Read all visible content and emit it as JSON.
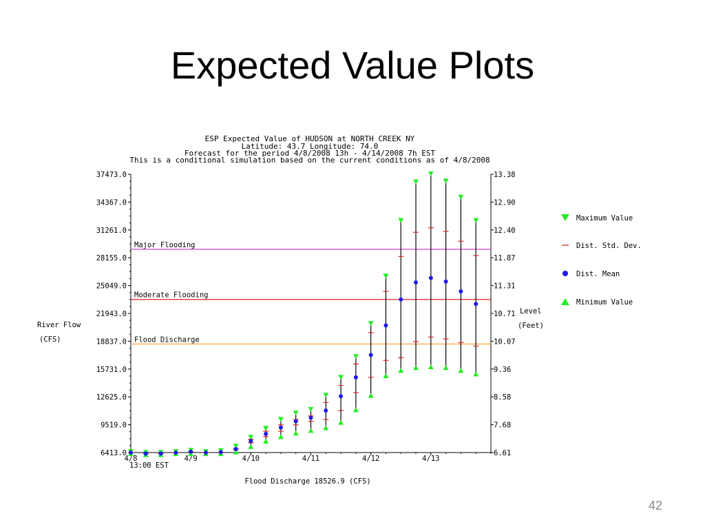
{
  "slide": {
    "title": "Expected Value Plots",
    "page_number": "42"
  },
  "chart_data": {
    "type": "scatter",
    "header": [
      "ESP Expected Value of HUDSON at NORTH CREEK NY",
      "Latitude: 43.7    Longitude:  74.0",
      "Forecast for the period 4/8/2008 13h - 4/14/2008 7h EST",
      "This is a conditional simulation based on the current conditions as of 4/8/2008"
    ],
    "ylabel_left": [
      "River Flow",
      "(CFS)"
    ],
    "ylabel_right": [
      "Level",
      "(Feet)"
    ],
    "xlabel": "Flood Discharge 18526.9 (CFS)",
    "ylim": [
      6413.0,
      37473.0
    ],
    "yticks_left": [
      "37473.0",
      "34367.0",
      "31261.0",
      "28155.0",
      "25049.0",
      "21943.0",
      "18837.0",
      "15731.0",
      "12625.0",
      "9519.0",
      "6413.0"
    ],
    "yticks_right": [
      "13.38",
      "12.90",
      "12.40",
      "11.87",
      "11.31",
      "10.71",
      "10.07",
      "9.36",
      "8.58",
      "7.68",
      "6.61"
    ],
    "xlim": [
      0,
      144
    ],
    "xticks": [
      {
        "x": 0,
        "label": "4/8"
      },
      {
        "x": 24,
        "label": "4/9"
      },
      {
        "x": 48,
        "label": "4/10"
      },
      {
        "x": 72,
        "label": "4/11"
      },
      {
        "x": 96,
        "label": "4/12"
      },
      {
        "x": 120,
        "label": "4/13"
      }
    ],
    "x_start_label": "13:00 EST",
    "thresholds": [
      {
        "name": "Major Flooding",
        "value": 29100,
        "color": "#cc44cc"
      },
      {
        "name": "Moderate Flooding",
        "value": 23500,
        "color": "#dd2222"
      },
      {
        "name": "Flood Discharge",
        "value": 18526.9,
        "color": "#ff9933"
      }
    ],
    "legend": {
      "position": "right",
      "entries": [
        {
          "name": "Maximum Value",
          "symbol": "triangle-down",
          "color": "#22ee22"
        },
        {
          "name": "Dist. Std. Dev.",
          "symbol": "dash",
          "color": "#dd2222"
        },
        {
          "name": "Dist. Mean",
          "symbol": "circle",
          "color": "#1a1aee"
        },
        {
          "name": "Minimum Value",
          "symbol": "triangle-up",
          "color": "#22ee22"
        }
      ]
    },
    "x": [
      0,
      6,
      12,
      18,
      24,
      30,
      36,
      42,
      48,
      54,
      60,
      66,
      72,
      78,
      84,
      90,
      96,
      102,
      108,
      114,
      120,
      126,
      132,
      138
    ],
    "maximum": [
      6413,
      6300,
      6300,
      6400,
      6550,
      6400,
      6500,
      7000,
      8000,
      9000,
      10000,
      10700,
      11100,
      12700,
      14700,
      17000,
      20700,
      26000,
      32200,
      36500,
      37400,
      36600,
      34800,
      32200
    ],
    "std_upper": [
      6413,
      6300,
      6300,
      6400,
      6500,
      6400,
      6450,
      6900,
      7900,
      8800,
      9500,
      10100,
      10500,
      12000,
      13900,
      16300,
      19800,
      24400,
      28300,
      31000,
      31500,
      31100,
      30000,
      28400
    ],
    "mean": [
      6413,
      6300,
      6300,
      6400,
      6500,
      6400,
      6450,
      6800,
      7700,
      8500,
      9200,
      9900,
      10300,
      11100,
      12700,
      14800,
      17300,
      20600,
      23500,
      25400,
      25900,
      25500,
      24400,
      23000
    ],
    "std_lower": [
      6413,
      6300,
      6300,
      6400,
      6500,
      6400,
      6450,
      6700,
      7500,
      8200,
      8800,
      9500,
      9900,
      10100,
      11100,
      13100,
      14800,
      16700,
      17000,
      18800,
      19300,
      19100,
      18700,
      18300
    ],
    "minimum": [
      6413,
      6300,
      6300,
      6400,
      6400,
      6400,
      6400,
      6600,
      7200,
      7800,
      8300,
      8700,
      9000,
      9300,
      9900,
      11300,
      12900,
      15100,
      15700,
      16000,
      16100,
      16000,
      15700,
      15300
    ]
  }
}
